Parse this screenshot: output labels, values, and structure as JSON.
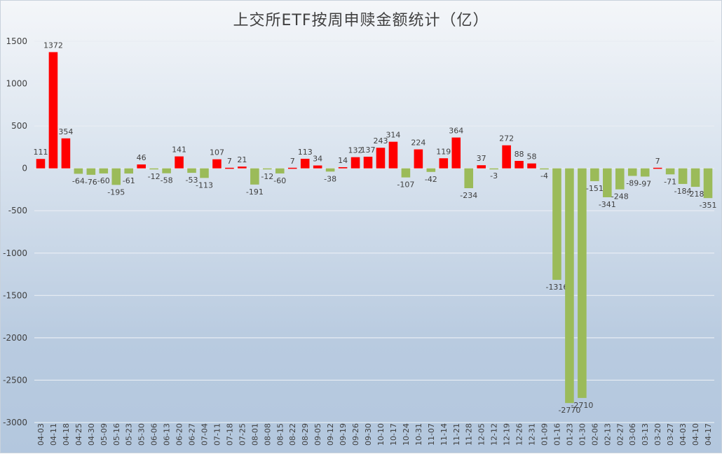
{
  "title": "上交所ETF按周申赎金额统计（亿）",
  "colors": {
    "positive": "#ff0000",
    "negative": "#9bbb59",
    "grid": "#e8edf3",
    "text": "#404040"
  },
  "chart_data": {
    "type": "bar",
    "title": "上交所ETF按周申赎金额统计（亿）",
    "xlabel": "",
    "ylabel": "",
    "ylim": [
      -3000,
      1500
    ],
    "yticks": [
      1500,
      1000,
      500,
      0,
      -500,
      -1000,
      -1500,
      -2000,
      -2500,
      -3000
    ],
    "grid": true,
    "legend": "none",
    "categories": [
      "04-03",
      "04-11",
      "04-18",
      "04-25",
      "04-30",
      "05-09",
      "05-16",
      "05-23",
      "05-30",
      "06-06",
      "06-13",
      "06-20",
      "06-27",
      "07-04",
      "07-11",
      "07-18",
      "07-25",
      "08-01",
      "08-08",
      "08-15",
      "08-22",
      "08-29",
      "09-05",
      "09-12",
      "09-19",
      "09-26",
      "09-30",
      "10-10",
      "10-17",
      "10-24",
      "10-31",
      "11-07",
      "11-14",
      "11-21",
      "11-28",
      "12-05",
      "12-12",
      "12-19",
      "12-26",
      "12-31",
      "01-09",
      "01-16",
      "01-23",
      "01-30",
      "02-06",
      "02-13",
      "02-27",
      "03-06",
      "03-13",
      "03-20",
      "03-27",
      "04-03",
      "04-10",
      "04-17"
    ],
    "values": [
      111,
      1372,
      354,
      -64,
      -76,
      -60,
      -195,
      -61,
      46,
      -12,
      -58,
      141,
      -53,
      -113,
      107,
      7,
      21,
      -191,
      -12,
      -60,
      7,
      113,
      34,
      -38,
      14,
      132,
      137,
      243,
      314,
      -107,
      224,
      -42,
      119,
      364,
      -234,
      37,
      -3,
      272,
      88,
      58,
      -4,
      -1316,
      -2770,
      -2710,
      -151,
      -341,
      -248,
      -89,
      -97,
      7,
      -71,
      -184,
      -218,
      -351
    ],
    "series": [
      {
        "name": "申赎金额（亿）",
        "values": [
          111,
          1372,
          354,
          -64,
          -76,
          -60,
          -195,
          -61,
          46,
          -12,
          -58,
          141,
          -53,
          -113,
          107,
          7,
          21,
          -191,
          -12,
          -60,
          7,
          113,
          34,
          -38,
          14,
          132,
          137,
          243,
          314,
          -107,
          224,
          -42,
          119,
          364,
          -234,
          37,
          -3,
          272,
          88,
          58,
          -4,
          -1316,
          -2770,
          -2710,
          -151,
          -341,
          -248,
          -89,
          -97,
          7,
          -71,
          -184,
          -218,
          -351
        ]
      }
    ]
  }
}
